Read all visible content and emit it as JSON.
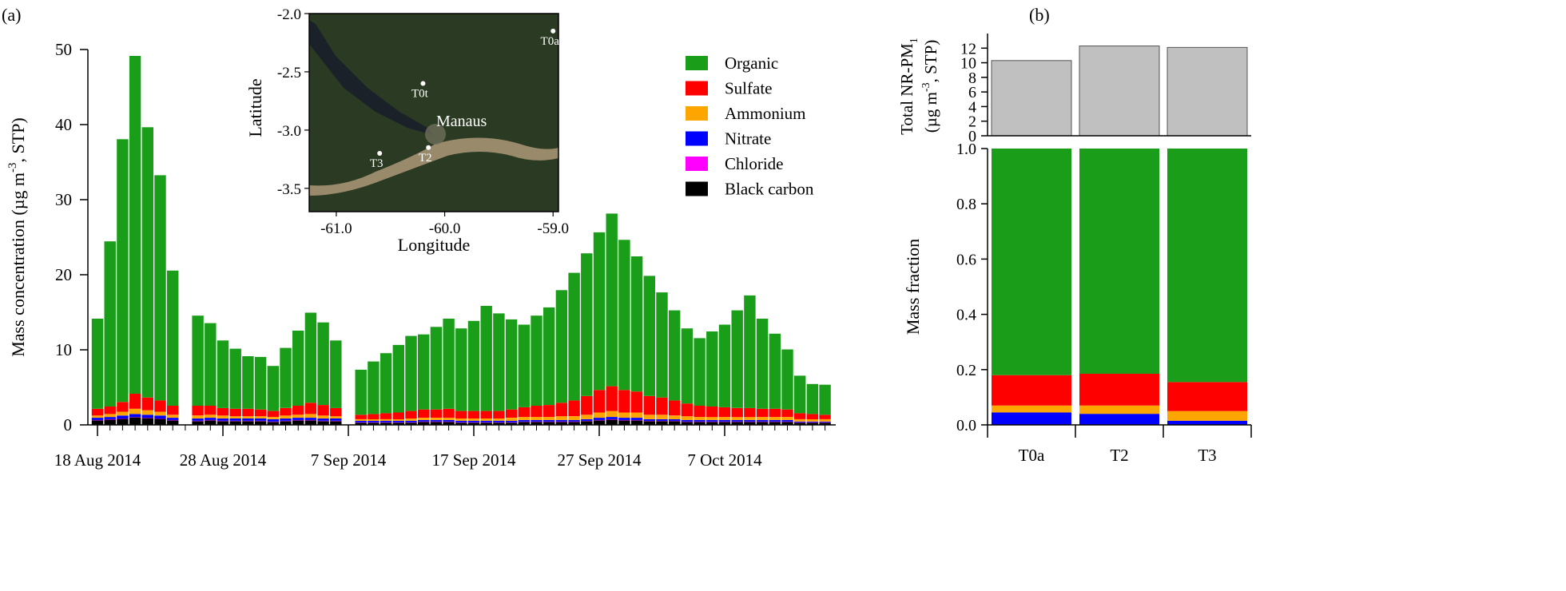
{
  "panel_a": {
    "label": "(a)",
    "ylabel_main": "Mass concentration (µg m",
    "ylabel_sup": "-3",
    "ylabel_tail": ", STP)",
    "legend": [
      {
        "name": "Organic",
        "color": "#1a9e1a"
      },
      {
        "name": "Sulfate",
        "color": "#ff0000"
      },
      {
        "name": "Ammonium",
        "color": "#ffa500"
      },
      {
        "name": "Nitrate",
        "color": "#0000ff"
      },
      {
        "name": "Chloride",
        "color": "#ff00ff"
      },
      {
        "name": "Black carbon",
        "color": "#000000"
      }
    ],
    "inset": {
      "xlabel": "Longitude",
      "ylabel": "Latitude",
      "x_ticks": [
        "-61.0",
        "-60.0",
        "-59.0"
      ],
      "y_ticks": [
        "-2.0",
        "-2.5",
        "-3.0",
        "-3.5"
      ],
      "city_label": "Manaus",
      "sites": [
        {
          "label": "T0a",
          "lon": -59.0,
          "lat": -2.15
        },
        {
          "label": "T0t",
          "lon": -60.2,
          "lat": -2.6
        },
        {
          "label": "T2",
          "lon": -60.15,
          "lat": -3.15
        },
        {
          "label": "T3",
          "lon": -60.6,
          "lat": -3.2
        }
      ]
    }
  },
  "panel_b": {
    "label": "(b)",
    "top_ylabel_line1": "Total NR-PM",
    "top_ylabel_sub": "1",
    "top_ylabel_line2_a": "(µg m",
    "top_ylabel_line2_sup": "-3",
    "top_ylabel_line2_b": ", STP)",
    "bottom_ylabel": "Mass fraction"
  },
  "chart_data": [
    {
      "type": "area",
      "title": "",
      "xlabel": "",
      "ylabel": "Mass concentration (µg m-3, STP)",
      "ylim": [
        0,
        50
      ],
      "y_ticks": [
        "0",
        "10",
        "20",
        "30",
        "40",
        "50"
      ],
      "x_ticks": [
        "18 Aug 2014",
        "28 Aug 2014",
        "7 Sep 2014",
        "17 Sep 2014",
        "27 Sep 2014",
        "7 Oct 2014"
      ],
      "x": [
        "2014-08-18",
        "2014-08-19",
        "2014-08-20",
        "2014-08-21",
        "2014-08-22",
        "2014-08-23",
        "2014-08-24",
        "2014-08-25",
        "2014-08-26",
        "2014-08-27",
        "2014-08-28",
        "2014-08-29",
        "2014-08-30",
        "2014-08-31",
        "2014-09-01",
        "2014-09-02",
        "2014-09-03",
        "2014-09-04",
        "2014-09-05",
        "2014-09-06",
        "2014-09-07",
        "2014-09-08",
        "2014-09-09",
        "2014-09-10",
        "2014-09-11",
        "2014-09-12",
        "2014-09-13",
        "2014-09-14",
        "2014-09-15",
        "2014-09-16",
        "2014-09-17",
        "2014-09-18",
        "2014-09-19",
        "2014-09-20",
        "2014-09-21",
        "2014-09-22",
        "2014-09-23",
        "2014-09-24",
        "2014-09-25",
        "2014-09-26",
        "2014-09-27",
        "2014-09-28",
        "2014-09-29",
        "2014-09-30",
        "2014-10-01",
        "2014-10-02",
        "2014-10-03",
        "2014-10-04",
        "2014-10-05",
        "2014-10-06",
        "2014-10-07",
        "2014-10-08",
        "2014-10-09",
        "2014-10-10",
        "2014-10-11",
        "2014-10-12",
        "2014-10-13",
        "2014-10-14",
        "2014-10-15"
      ],
      "series": [
        {
          "name": "Black carbon",
          "values": [
            0.6,
            0.7,
            0.8,
            1.0,
            0.9,
            0.8,
            0.6,
            null,
            0.5,
            0.6,
            0.5,
            0.5,
            0.5,
            0.5,
            0.4,
            0.5,
            0.6,
            0.6,
            0.5,
            0.5,
            null,
            0.3,
            0.3,
            0.3,
            0.3,
            0.3,
            0.4,
            0.4,
            0.4,
            0.3,
            0.3,
            0.3,
            0.3,
            0.3,
            0.4,
            0.4,
            0.4,
            0.4,
            0.4,
            0.5,
            0.6,
            0.7,
            0.6,
            0.6,
            0.5,
            0.5,
            0.5,
            0.4,
            0.4,
            0.4,
            0.4,
            0.4,
            0.4,
            0.4,
            0.4,
            0.4,
            0.3,
            0.3,
            0.3
          ]
        },
        {
          "name": "Chloride",
          "values": [
            0.05,
            0.05,
            0.05,
            0.05,
            0.05,
            0.05,
            0.05,
            null,
            0.05,
            0.05,
            0.05,
            0.05,
            0.05,
            0.05,
            0.05,
            0.05,
            0.05,
            0.05,
            0.05,
            0.05,
            null,
            0.05,
            0.05,
            0.05,
            0.05,
            0.05,
            0.05,
            0.05,
            0.05,
            0.05,
            0.05,
            0.05,
            0.05,
            0.05,
            0.05,
            0.05,
            0.05,
            0.05,
            0.05,
            0.05,
            0.05,
            0.05,
            0.05,
            0.05,
            0.05,
            0.05,
            0.05,
            0.05,
            0.05,
            0.05,
            0.05,
            0.05,
            0.05,
            0.05,
            0.05,
            0.05,
            0.05,
            0.05,
            0.05
          ]
        },
        {
          "name": "Nitrate",
          "values": [
            0.3,
            0.3,
            0.4,
            0.4,
            0.4,
            0.4,
            0.3,
            null,
            0.3,
            0.3,
            0.3,
            0.3,
            0.3,
            0.3,
            0.3,
            0.3,
            0.3,
            0.3,
            0.3,
            0.3,
            null,
            0.2,
            0.2,
            0.2,
            0.2,
            0.2,
            0.2,
            0.2,
            0.2,
            0.2,
            0.2,
            0.2,
            0.2,
            0.2,
            0.2,
            0.2,
            0.2,
            0.2,
            0.2,
            0.2,
            0.3,
            0.3,
            0.3,
            0.3,
            0.2,
            0.2,
            0.2,
            0.2,
            0.2,
            0.2,
            0.2,
            0.2,
            0.2,
            0.2,
            0.2,
            0.2,
            0.1,
            0.1,
            0.1
          ]
        },
        {
          "name": "Ammonium",
          "values": [
            0.3,
            0.4,
            0.5,
            0.7,
            0.6,
            0.5,
            0.4,
            null,
            0.4,
            0.4,
            0.4,
            0.3,
            0.3,
            0.3,
            0.3,
            0.4,
            0.4,
            0.5,
            0.4,
            0.3,
            null,
            0.2,
            0.2,
            0.2,
            0.2,
            0.3,
            0.3,
            0.3,
            0.3,
            0.3,
            0.3,
            0.3,
            0.3,
            0.4,
            0.4,
            0.4,
            0.4,
            0.5,
            0.5,
            0.6,
            0.7,
            0.8,
            0.7,
            0.7,
            0.6,
            0.6,
            0.5,
            0.5,
            0.4,
            0.4,
            0.4,
            0.4,
            0.4,
            0.4,
            0.4,
            0.4,
            0.3,
            0.3,
            0.3
          ]
        },
        {
          "name": "Sulfate",
          "values": [
            0.9,
            1.0,
            1.3,
            2.0,
            1.7,
            1.5,
            1.2,
            null,
            1.3,
            1.2,
            1.0,
            1.0,
            1.0,
            0.9,
            0.8,
            1.0,
            1.2,
            1.5,
            1.4,
            1.1,
            null,
            0.6,
            0.7,
            0.8,
            0.9,
            1.0,
            1.1,
            1.1,
            1.2,
            1.0,
            1.0,
            1.0,
            1.0,
            1.1,
            1.3,
            1.5,
            1.6,
            1.8,
            2.1,
            2.5,
            3.0,
            3.3,
            3.0,
            2.8,
            2.5,
            2.3,
            2.0,
            1.7,
            1.5,
            1.4,
            1.3,
            1.2,
            1.2,
            1.1,
            1.1,
            1.0,
            0.8,
            0.7,
            0.6
          ]
        },
        {
          "name": "Organic",
          "values": [
            12,
            22,
            35,
            45,
            36,
            30,
            18,
            null,
            12,
            11,
            9,
            8,
            7,
            7,
            6,
            8,
            10,
            12,
            11,
            9,
            null,
            6,
            7,
            8,
            9,
            10,
            10,
            11,
            12,
            11,
            12,
            14,
            13,
            12,
            11,
            12,
            13,
            15,
            17,
            19,
            21,
            23,
            20,
            18,
            16,
            14,
            12,
            10,
            9,
            10,
            11,
            13,
            15,
            12,
            10,
            8,
            5,
            4,
            4
          ]
        }
      ]
    },
    {
      "type": "bar",
      "title": "",
      "xlabel": "",
      "ylabel": "Total NR-PM1 (µg m-3, STP)",
      "categories": [
        "T0a",
        "T2",
        "T3"
      ],
      "values": [
        10.3,
        12.3,
        12.1
      ],
      "ylim": [
        0,
        14
      ],
      "y_ticks": [
        "0",
        "2",
        "4",
        "6",
        "8",
        "10",
        "12"
      ],
      "color": "#c0c0c0"
    },
    {
      "type": "bar",
      "title": "",
      "xlabel": "",
      "ylabel": "Mass fraction",
      "categories": [
        "T0a",
        "T2",
        "T3"
      ],
      "ylim": [
        0,
        1
      ],
      "y_ticks": [
        "0.0",
        "0.2",
        "0.4",
        "0.6",
        "0.8",
        "1.0"
      ],
      "series": [
        {
          "name": "Nitrate",
          "values": [
            0.045,
            0.04,
            0.015
          ],
          "color": "#0000ff"
        },
        {
          "name": "Ammonium",
          "values": [
            0.025,
            0.03,
            0.035
          ],
          "color": "#ffa500"
        },
        {
          "name": "Sulfate",
          "values": [
            0.11,
            0.115,
            0.105
          ],
          "color": "#ff0000"
        },
        {
          "name": "Organic",
          "values": [
            0.82,
            0.815,
            0.845
          ],
          "color": "#1a9e1a"
        }
      ]
    }
  ]
}
